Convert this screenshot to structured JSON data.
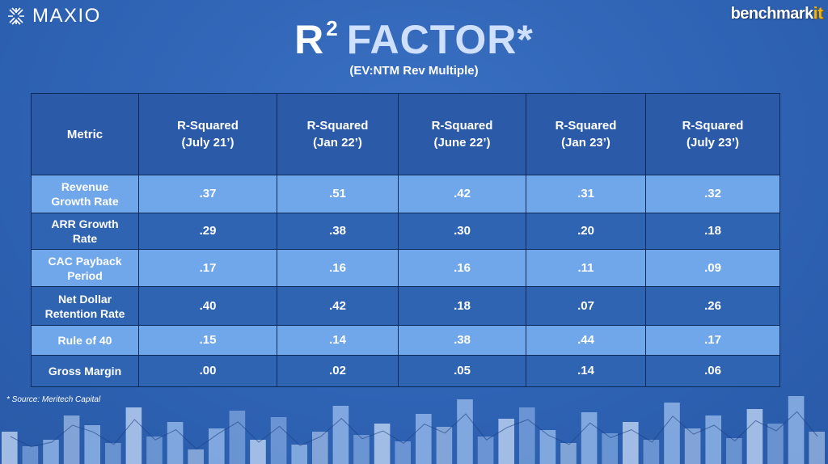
{
  "header": {
    "brand_left": "MAXIO",
    "brand_right_main": "benchmark",
    "brand_right_accent": "it",
    "title_r": "R",
    "title_sup": "2",
    "title_rest": "FACTOR*",
    "subtitle": "(EV:NTM Rev Multiple)"
  },
  "table": {
    "metric_header": "Metric",
    "columns": [
      {
        "line1": "R-Squared",
        "line2": "(July 21’)"
      },
      {
        "line1": "R-Squared",
        "line2": "(Jan 22’)"
      },
      {
        "line1": "R-Squared",
        "line2": "(June 22’)"
      },
      {
        "line1": "R-Squared",
        "line2": "(Jan 23’)"
      },
      {
        "line1": "R-Squared",
        "line2": "(July 23’)"
      }
    ],
    "rows": [
      {
        "metric1": "Revenue",
        "metric2": "Growth Rate",
        "values": [
          ".37",
          ".51",
          ".42",
          ".31",
          ".32"
        ]
      },
      {
        "metric1": "ARR Growth",
        "metric2": "Rate",
        "values": [
          ".29",
          ".38",
          ".30",
          ".20",
          ".18"
        ]
      },
      {
        "metric1": "CAC Payback",
        "metric2": "Period",
        "values": [
          ".17",
          ".16",
          ".16",
          ".11",
          ".09"
        ]
      },
      {
        "metric1": "Net Dollar",
        "metric2": "Retention Rate",
        "values": [
          ".40",
          ".42",
          ".18",
          ".07",
          ".26"
        ]
      },
      {
        "metric1": "Rule of 40",
        "metric2": "",
        "values": [
          ".15",
          ".14",
          ".38",
          ".44",
          ".17"
        ]
      },
      {
        "metric1": "Gross Margin",
        "metric2": "",
        "values": [
          ".00",
          ".02",
          ".05",
          ".14",
          ".06"
        ]
      }
    ]
  },
  "footer": {
    "source": "* Source: Meritech Capital"
  },
  "colors": {
    "background": "#2f63b4",
    "row_light": "#6fa7ea",
    "row_dark": "#2f64b3",
    "accent_orange": "#f7b500"
  }
}
